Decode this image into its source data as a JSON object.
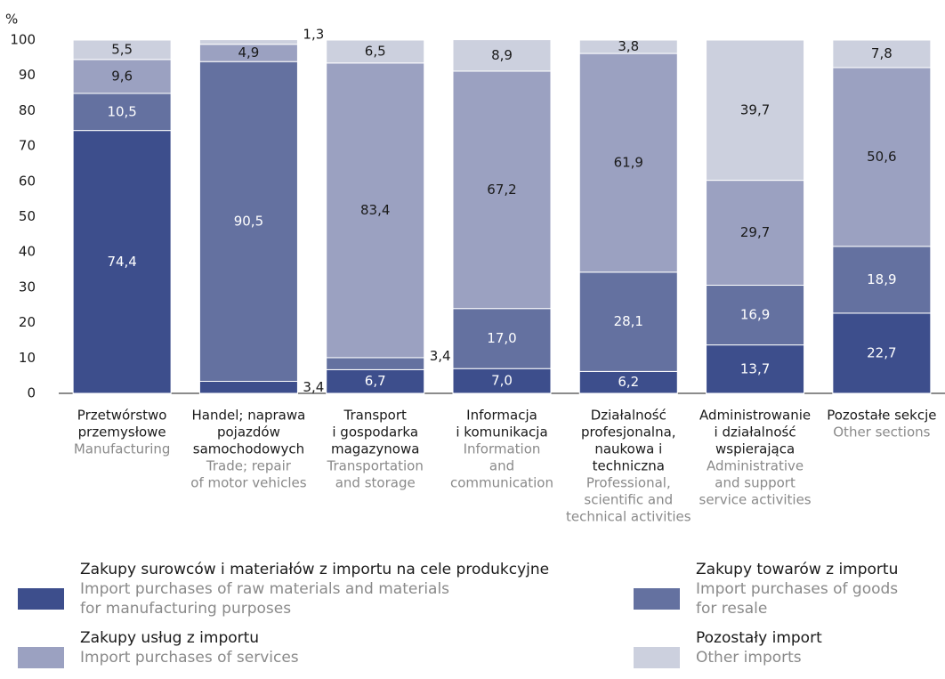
{
  "chart_data": {
    "type": "stacked_bar",
    "y_unit": "%",
    "ylim": [
      0,
      100
    ],
    "yticks": [
      0,
      10,
      20,
      30,
      40,
      50,
      60,
      70,
      80,
      90,
      100
    ],
    "grid": false,
    "categories": [
      [
        "Przetwórstwo",
        "przemysłowe"
      ],
      [
        "Handel; naprawa",
        "pojazdów",
        "samochodowych"
      ],
      [
        "Transport",
        "i gospodarka",
        "magazynowa"
      ],
      [
        "Informacja",
        "i komunikacja"
      ],
      [
        "Działalność",
        "profesjonalna,",
        "naukowa i",
        "techniczna"
      ],
      [
        "Administrowanie",
        "i działalność",
        "wspierająca"
      ],
      [
        "Pozostałe sekcje"
      ]
    ],
    "categories_en": [
      [
        "Manufacturing"
      ],
      [
        "Trade; repair",
        "of motor vehicles"
      ],
      [
        "Transportation",
        "and storage"
      ],
      [
        "Information",
        "and",
        "communication"
      ],
      [
        "Professional,",
        "scientific and",
        "technical activities"
      ],
      [
        "Administrative",
        "and support",
        "service activities"
      ],
      [
        "Other sections"
      ]
    ],
    "series": [
      {
        "name": "Zakupy surowców i materiałów z importu na cele produkcyjne",
        "name_en": [
          "Import purchases of  raw materials and materials",
          "for manufacturing purposes"
        ],
        "color": "#3d4e8c",
        "values": [
          74.4,
          3.4,
          6.7,
          7.0,
          6.2,
          13.7,
          22.7
        ],
        "value_labels": [
          "74,4",
          "3,4",
          "6,7",
          "7,0",
          "6,2",
          "13,7",
          "22,7"
        ]
      },
      {
        "name": "Zakupy towarów z importu",
        "name_en": [
          "Import purchases of goods",
          "for resale"
        ],
        "color": "#6471a0",
        "values": [
          10.5,
          90.5,
          3.4,
          17.0,
          28.1,
          16.9,
          18.9
        ],
        "value_labels": [
          "10,5",
          "90,5",
          "3,4",
          "17,0",
          "28,1",
          "16,9",
          "18,9"
        ]
      },
      {
        "name": "Zakupy usług z importu",
        "name_en": [
          "Import purchases of services"
        ],
        "color": "#9ba1c1",
        "values": [
          9.6,
          4.9,
          83.4,
          67.2,
          61.9,
          29.7,
          50.6
        ],
        "value_labels": [
          "9,6",
          "4,9",
          "83,4",
          "67,2",
          "61,9",
          "29,7",
          "50,6"
        ]
      },
      {
        "name": "Pozostały import",
        "name_en": [
          "Other imports"
        ],
        "color": "#ccd0de",
        "values": [
          5.5,
          1.3,
          6.5,
          8.9,
          3.8,
          39.7,
          7.8
        ],
        "value_labels": [
          "5,5",
          "1,3",
          "6,5",
          "8,9",
          "3,8",
          "39,7",
          "7,8"
        ]
      }
    ]
  }
}
